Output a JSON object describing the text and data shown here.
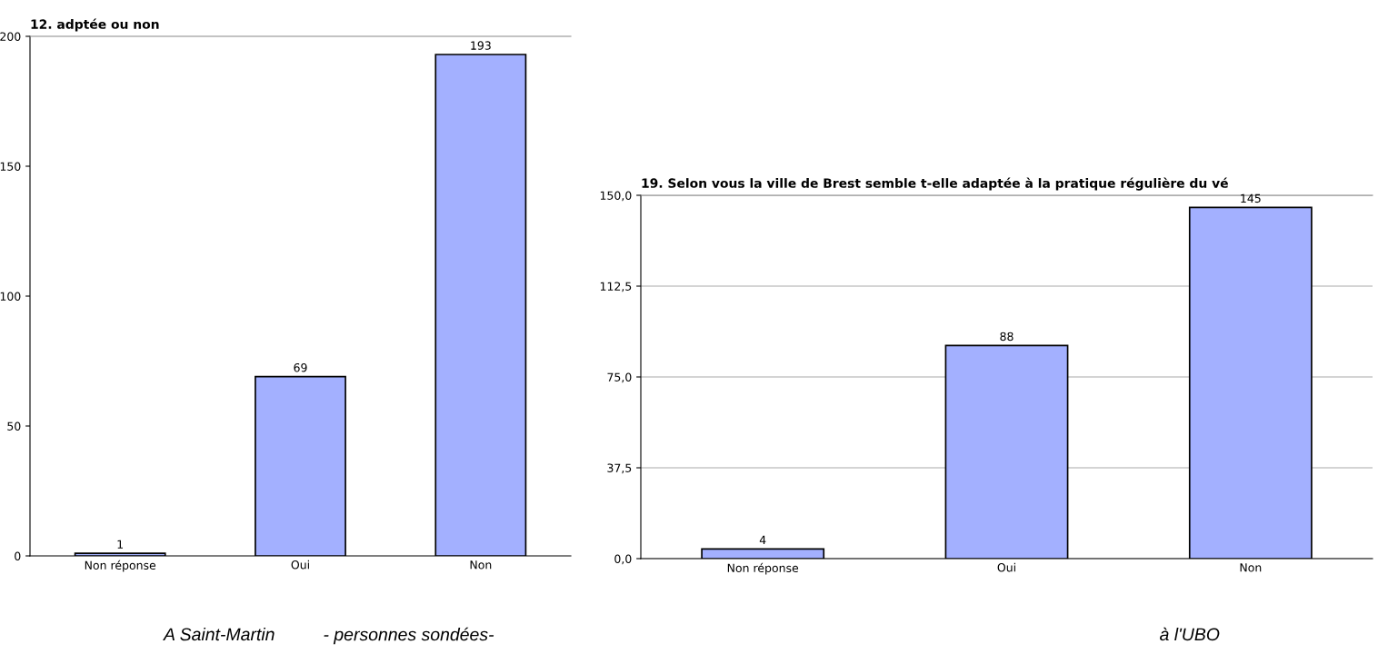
{
  "chart_data": [
    {
      "type": "bar",
      "title": "12. adptée ou non",
      "categories": [
        "Non réponse",
        "Oui",
        "Non"
      ],
      "values": [
        1,
        69,
        193
      ],
      "color": "#a3b0ff",
      "ylim": [
        0,
        200
      ],
      "yticks": [
        0,
        50,
        100,
        150,
        200
      ],
      "data_labels": true,
      "grid": false,
      "annotations": [
        "A Saint-Martin",
        "- personnes sondées-"
      ]
    },
    {
      "type": "bar",
      "title": "19. Selon vous la ville de Brest semble t-elle adaptée à la pratique régulière du vé",
      "categories": [
        "Non réponse",
        "Oui",
        "Non"
      ],
      "values": [
        4,
        88,
        145
      ],
      "color": "#a3b0ff",
      "ylim": [
        0,
        150
      ],
      "yticks": [
        {
          "value": 0,
          "label": "0,0"
        },
        {
          "value": 37.5,
          "label": "37,5"
        },
        {
          "value": 75,
          "label": "75,0"
        },
        {
          "value": 112.5,
          "label": "112,5"
        },
        {
          "value": 150,
          "label": "150,0"
        }
      ],
      "data_labels": true,
      "grid": "y",
      "annotations": [
        "à l'UBO"
      ]
    }
  ]
}
